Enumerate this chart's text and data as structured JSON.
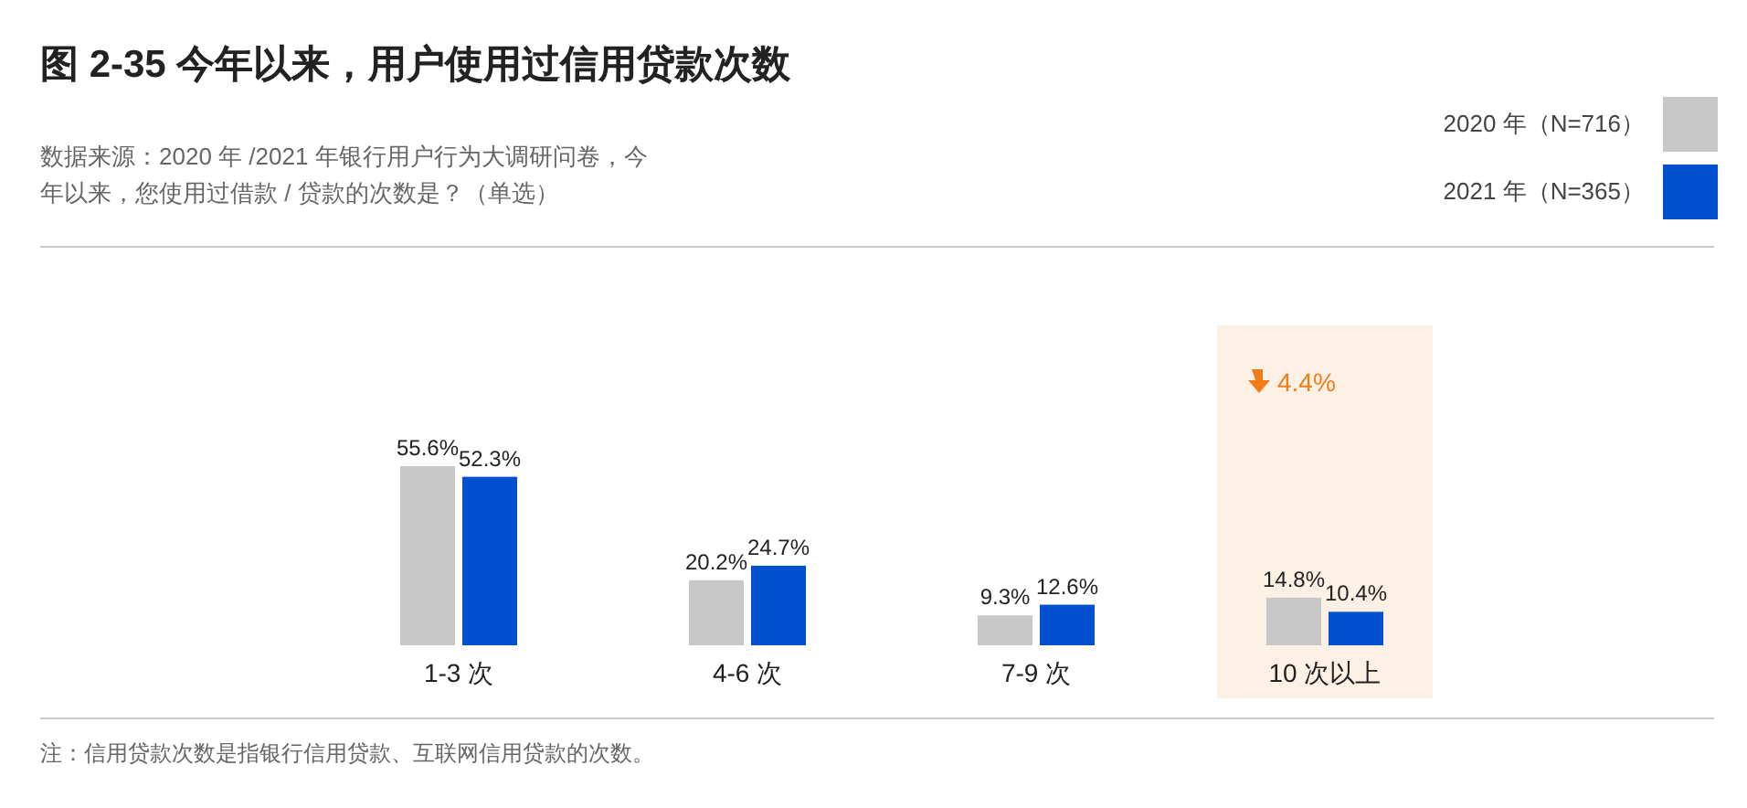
{
  "chart_data": {
    "type": "bar",
    "title": "图 2-35  今年以来，用户使用过信用贷款次数",
    "subtitle": "数据来源：2020 年 /2021 年银行用户行为大调研问卷，今年以来，您使用过借款 / 贷款的次数是？（单选）",
    "categories": [
      "1-3 次",
      "4-6 次",
      "7-9 次",
      "10 次以上"
    ],
    "series": [
      {
        "name": "2020 年（N=716）",
        "color": "#c8c8c8",
        "values": [
          55.6,
          20.2,
          9.3,
          14.8
        ],
        "value_labels": [
          "55.6%",
          "20.2%",
          "9.3%",
          "14.8%"
        ]
      },
      {
        "name": "2021 年（N=365）",
        "color": "#0050d0",
        "values": [
          52.3,
          24.7,
          12.6,
          10.4
        ],
        "value_labels": [
          "52.3%",
          "24.7%",
          "12.6%",
          "10.4%"
        ]
      }
    ],
    "bands": [
      {
        "axis": "x",
        "from": "10 次以上",
        "to": "10 次以上",
        "color": "#fdf0e4"
      }
    ],
    "annotations": [
      "4.4%",
      "注：信用贷款次数是指银行信用贷款、互联网信用贷款的次数。"
    ],
    "legend": "top right"
  }
}
